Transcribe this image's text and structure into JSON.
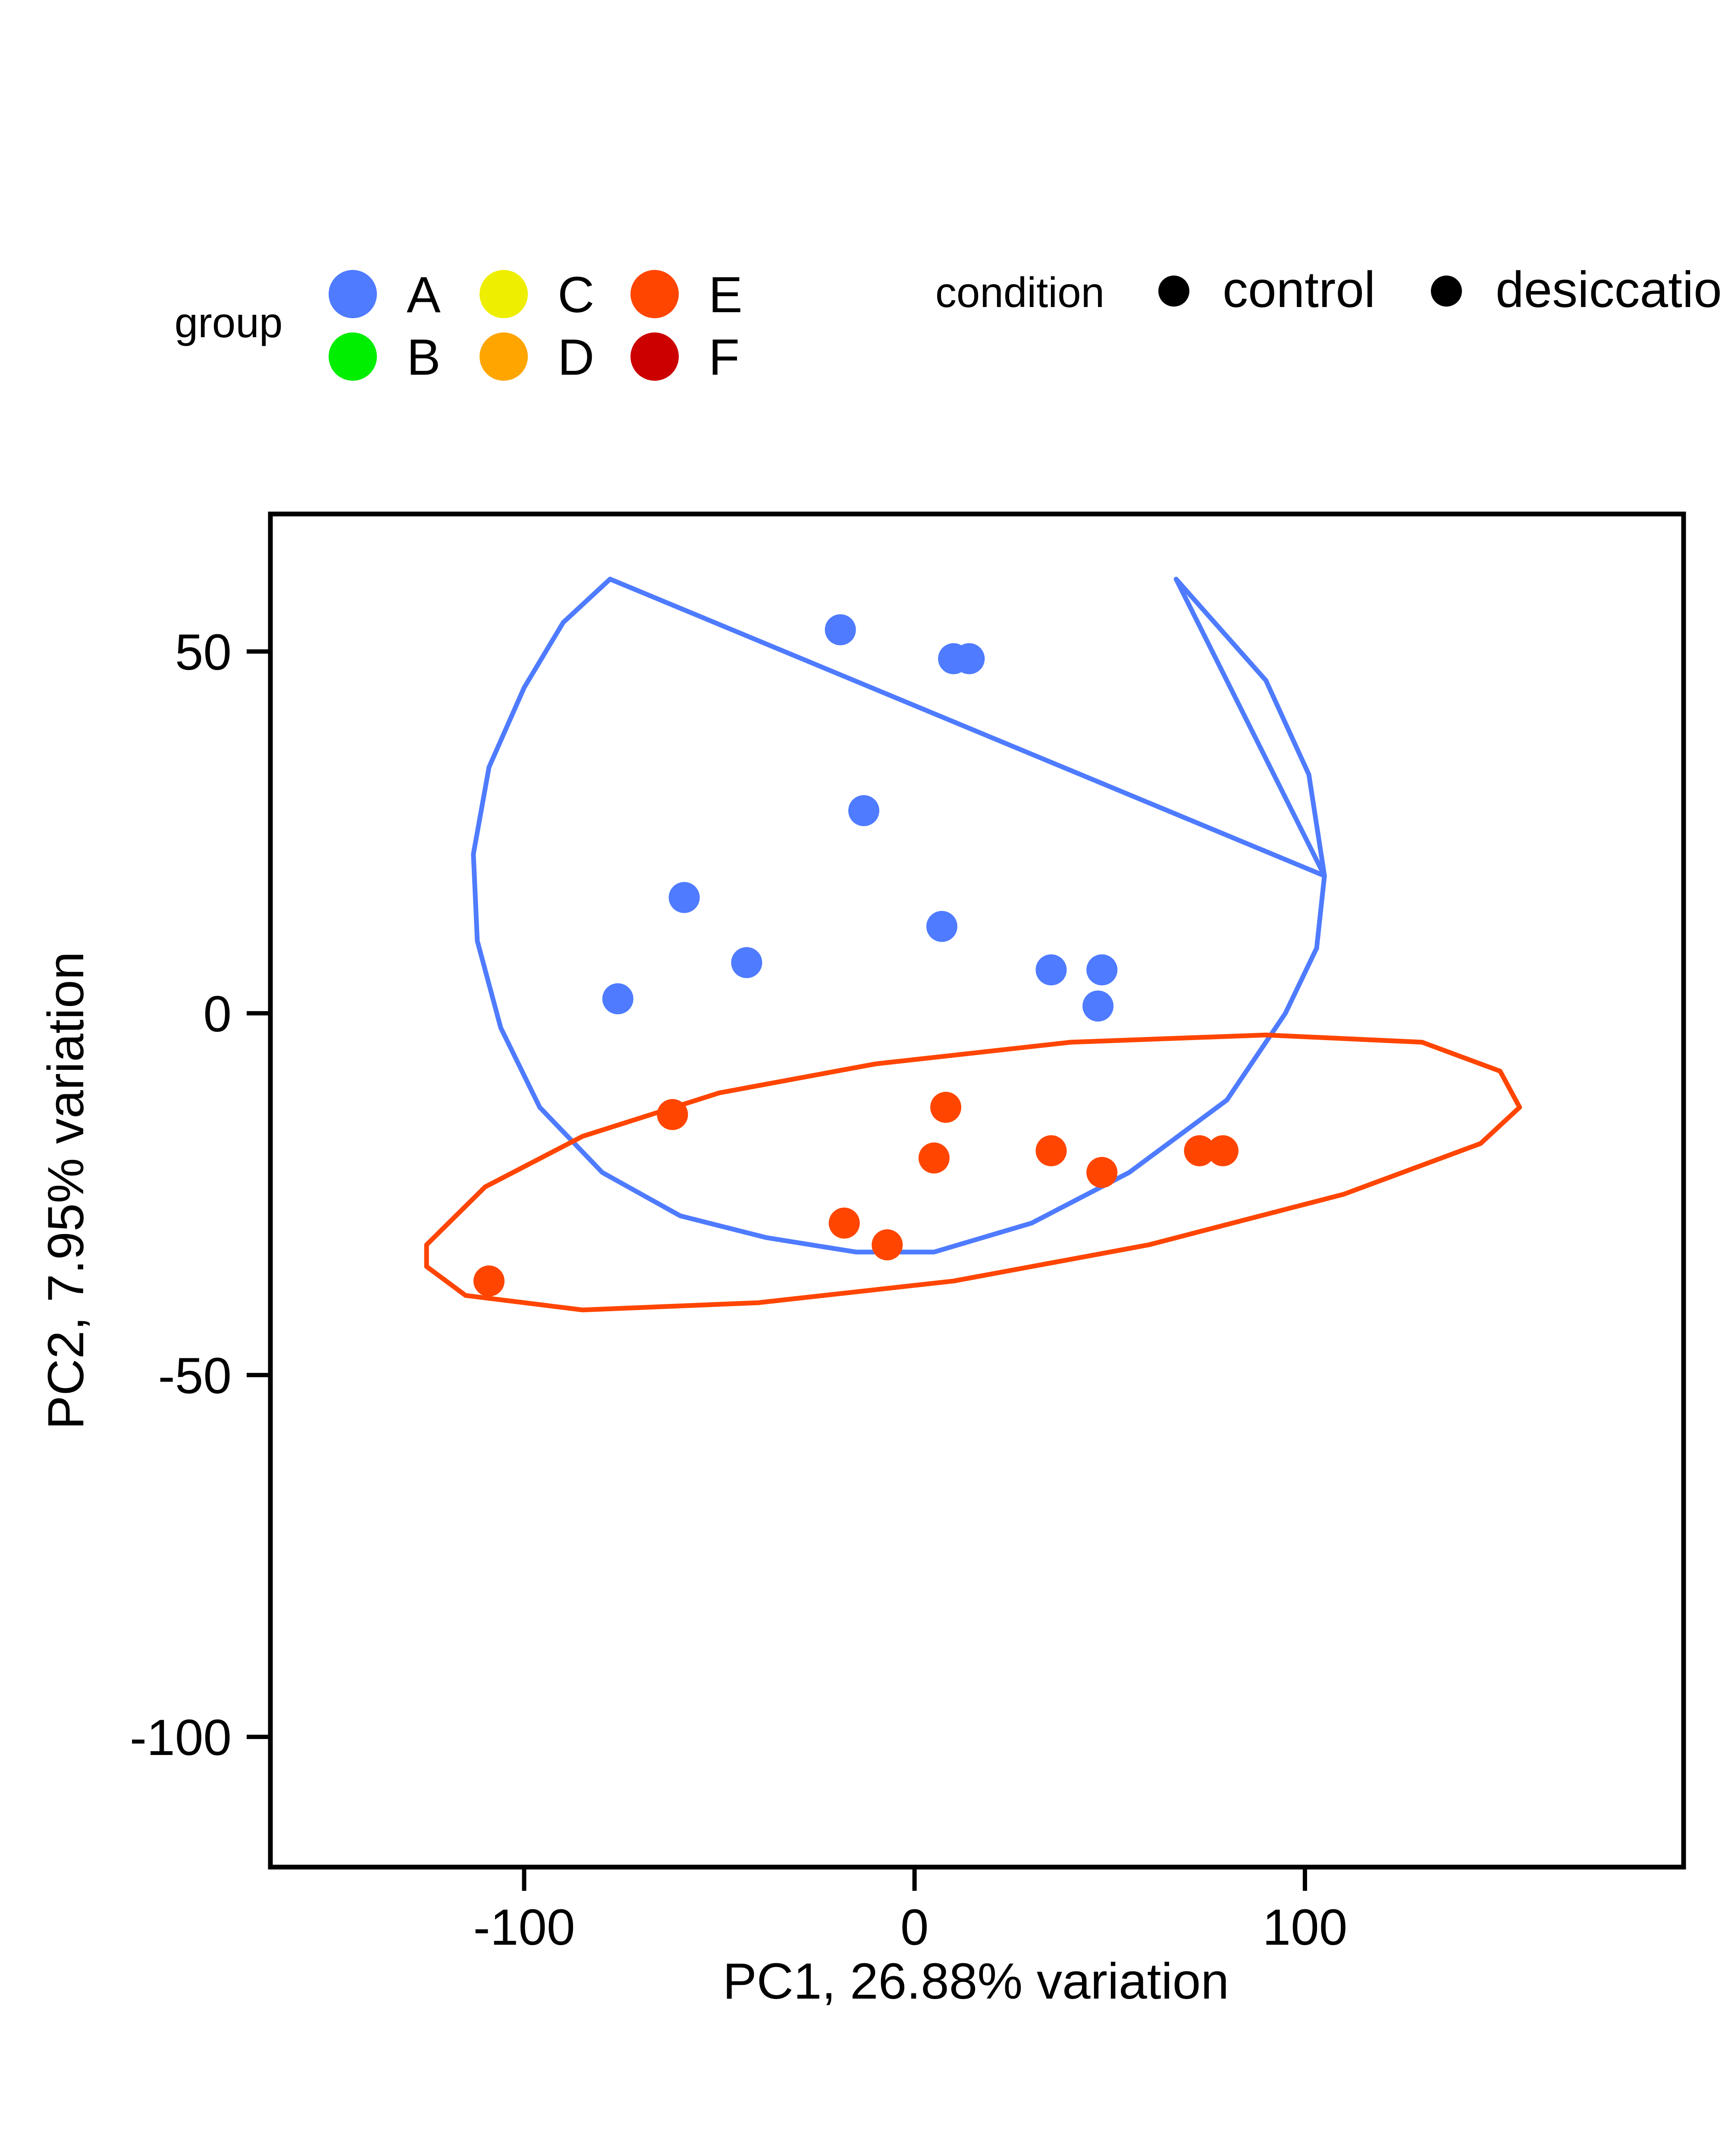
{
  "chart_data": {
    "type": "scatter",
    "xlabel": "PC1, 26.88% variation",
    "ylabel": "PC2, 7.95% variation",
    "xlim": [
      -165,
      197
    ],
    "ylim": [
      -118,
      69
    ],
    "xticks": [
      -100,
      0,
      100
    ],
    "yticks": [
      -100,
      -50,
      0,
      50
    ],
    "xtick_labels": [
      "-100",
      "0",
      "100"
    ],
    "ytick_labels": [
      "-100",
      "-50",
      "0",
      "50"
    ],
    "grid": false,
    "legend": {
      "group_title": "group",
      "groups": [
        {
          "label": "A",
          "color": "#4E7BFF"
        },
        {
          "label": "B",
          "color": "#00EE00"
        },
        {
          "label": "C",
          "color": "#EEEE00"
        },
        {
          "label": "D",
          "color": "#FFA500"
        },
        {
          "label": "E",
          "color": "#FF4500"
        },
        {
          "label": "F",
          "color": "#CD0000"
        }
      ],
      "condition_title": "condition",
      "conditions": [
        "control",
        "desiccation"
      ],
      "condition_marker_color": "#000000"
    },
    "series": [
      {
        "name": "A",
        "color": "#4E7BFF",
        "x": [
          -19,
          10,
          14,
          -13,
          -59,
          -43,
          7,
          -76,
          35,
          48,
          47
        ],
        "y": [
          53,
          49,
          49,
          28,
          16,
          7,
          12,
          2,
          6,
          6,
          1
        ]
      },
      {
        "name": "E",
        "color": "#FF4500",
        "x": [
          -62,
          8,
          5,
          35,
          48,
          73,
          79,
          -18,
          -7,
          -109
        ],
        "y": [
          -14,
          -13,
          -20,
          -19,
          -22,
          -19,
          -19,
          -29,
          -32,
          -37
        ]
      }
    ],
    "enclosures": [
      {
        "group": "A",
        "color": "#4E7BFF",
        "points": [
          [
            -78,
            60
          ],
          [
            -90,
            54
          ],
          [
            -100,
            45
          ],
          [
            -109,
            34
          ],
          [
            -113,
            22
          ],
          [
            -112,
            10
          ],
          [
            -106,
            -2
          ],
          [
            -96,
            -13
          ],
          [
            -80,
            -22
          ],
          [
            -60,
            -28
          ],
          [
            -38,
            -31
          ],
          [
            -15,
            -33
          ],
          [
            5,
            -33
          ],
          [
            30,
            -29
          ],
          [
            55,
            -22
          ],
          [
            80,
            -12
          ],
          [
            95,
            0
          ],
          [
            103,
            9
          ],
          [
            105,
            19
          ],
          [
            101,
            33
          ],
          [
            90,
            46
          ],
          [
            67,
            60
          ],
          [
            105,
            19
          ],
          [
            -78,
            60
          ]
        ]
      },
      {
        "group": "E",
        "color": "#FF4500",
        "points": [
          [
            -125,
            -32
          ],
          [
            -110,
            -24
          ],
          [
            -85,
            -17
          ],
          [
            -50,
            -11
          ],
          [
            -10,
            -7
          ],
          [
            40,
            -4
          ],
          [
            90,
            -3
          ],
          [
            130,
            -4
          ],
          [
            150,
            -8
          ],
          [
            155,
            -13
          ],
          [
            145,
            -18
          ],
          [
            110,
            -25
          ],
          [
            60,
            -32
          ],
          [
            10,
            -37
          ],
          [
            -40,
            -40
          ],
          [
            -85,
            -41
          ],
          [
            -115,
            -39
          ],
          [
            -125,
            -35
          ],
          [
            -125,
            -32
          ]
        ]
      }
    ]
  }
}
